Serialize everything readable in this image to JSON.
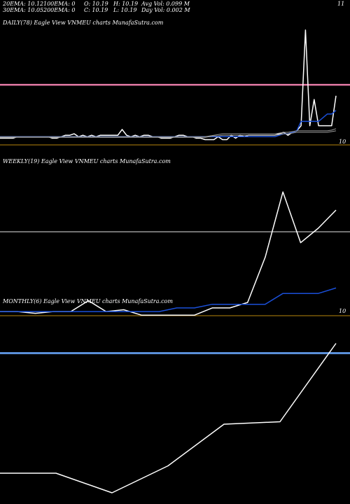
{
  "header": {
    "row1": [
      "20EMA: 10.12",
      "100EMA: 0",
      "O: 10.19",
      "H: 10.19",
      "Avg Vol: 0.099  M",
      "11"
    ],
    "row2": [
      "30EMA: 10.05",
      "200EMA: 0",
      "C: 10.19",
      "L: 10.19",
      "Day Vol: 0.002  M"
    ]
  },
  "colors": {
    "background": "#000000",
    "price_line": "#ffffff",
    "ema_blue": "#1a4fd8",
    "ema_grey": "#9a9a9a",
    "pink_line": "#e57aa6",
    "gold_divider": "#b8860b",
    "steel_line": "#5a8fd8"
  },
  "chart_data": [
    {
      "type": "line",
      "title": "DAILY(78) Eagle   View  VNMEU charts MunafaSutra.com",
      "price_tag": "10",
      "series": [
        {
          "color": "#ffffff",
          "values": [
            10.02,
            10.02,
            10.02,
            10.02,
            10.04,
            10.04,
            10.04,
            10.04,
            10.04,
            10.04,
            10.04,
            10.04,
            10.02,
            10.02,
            10.04,
            10.06,
            10.06,
            10.08,
            10.04,
            10.06,
            10.04,
            10.06,
            10.04,
            10.06,
            10.06,
            10.06,
            10.06,
            10.06,
            10.14,
            10.06,
            10.04,
            10.06,
            10.04,
            10.06,
            10.06,
            10.04,
            10.04,
            10.02,
            10.02,
            10.02,
            10.04,
            10.06,
            10.06,
            10.04,
            10.04,
            10.02,
            10.02,
            10.0,
            10.0,
            10.0,
            10.04,
            10.0,
            10.0,
            10.06,
            10.02,
            10.06,
            10.04,
            10.06,
            10.06,
            10.06,
            10.06,
            10.06,
            10.06,
            10.06,
            10.08,
            10.1,
            10.06,
            10.1,
            10.12,
            10.19,
            11.5,
            10.19,
            10.55,
            10.19,
            10.19,
            10.19,
            10.19,
            10.6
          ]
        },
        {
          "color": "#1a4fd8",
          "values": [
            10.04,
            10.04,
            10.04,
            10.04,
            10.04,
            10.04,
            10.04,
            10.04,
            10.04,
            10.04,
            10.04,
            10.04,
            10.04,
            10.04,
            10.04,
            10.04,
            10.04,
            10.04,
            10.04,
            10.04,
            10.04,
            10.04,
            10.04,
            10.04,
            10.04,
            10.04,
            10.04,
            10.04,
            10.04,
            10.04,
            10.04,
            10.04,
            10.04,
            10.04,
            10.04,
            10.04,
            10.04,
            10.04,
            10.04,
            10.04,
            10.04,
            10.04,
            10.04,
            10.04,
            10.04,
            10.04,
            10.04,
            10.04,
            10.04,
            10.04,
            10.04,
            10.04,
            10.04,
            10.04,
            10.04,
            10.04,
            10.04,
            10.04,
            10.04,
            10.04,
            10.04,
            10.04,
            10.04,
            10.04,
            10.06,
            10.08,
            10.08,
            10.1,
            10.12,
            10.25,
            10.25,
            10.25,
            10.25,
            10.25,
            10.3,
            10.35,
            10.35,
            10.4
          ]
        },
        {
          "color": "#9a9a9a",
          "values": [
            10.04,
            10.04,
            10.04,
            10.04,
            10.04,
            10.04,
            10.04,
            10.04,
            10.04,
            10.04,
            10.04,
            10.04,
            10.04,
            10.04,
            10.04,
            10.04,
            10.04,
            10.04,
            10.04,
            10.04,
            10.04,
            10.04,
            10.04,
            10.04,
            10.04,
            10.04,
            10.04,
            10.04,
            10.04,
            10.04,
            10.04,
            10.04,
            10.04,
            10.04,
            10.04,
            10.04,
            10.04,
            10.04,
            10.04,
            10.04,
            10.04,
            10.04,
            10.04,
            10.04,
            10.04,
            10.04,
            10.04,
            10.04,
            10.05,
            10.06,
            10.07,
            10.08,
            10.08,
            10.08,
            10.08,
            10.08,
            10.08,
            10.08,
            10.08,
            10.08,
            10.08,
            10.08,
            10.08,
            10.08,
            10.09,
            10.1,
            10.1,
            10.11,
            10.12,
            10.12,
            10.12,
            10.12,
            10.12,
            10.12,
            10.12,
            10.12,
            10.13,
            10.15
          ]
        },
        {
          "color": "#9a9a9a",
          "values": [
            10.03,
            10.03,
            10.03,
            10.03,
            10.03,
            10.03,
            10.03,
            10.03,
            10.03,
            10.03,
            10.03,
            10.03,
            10.03,
            10.03,
            10.03,
            10.03,
            10.03,
            10.03,
            10.03,
            10.03,
            10.03,
            10.03,
            10.03,
            10.03,
            10.03,
            10.03,
            10.03,
            10.03,
            10.03,
            10.03,
            10.03,
            10.03,
            10.03,
            10.03,
            10.03,
            10.03,
            10.03,
            10.03,
            10.03,
            10.03,
            10.03,
            10.03,
            10.03,
            10.03,
            10.03,
            10.03,
            10.03,
            10.03,
            10.04,
            10.05,
            10.05,
            10.06,
            10.06,
            10.06,
            10.06,
            10.06,
            10.06,
            10.06,
            10.06,
            10.06,
            10.06,
            10.06,
            10.06,
            10.06,
            10.07,
            10.08,
            10.08,
            10.09,
            10.1,
            10.1,
            10.1,
            10.1,
            10.1,
            10.1,
            10.1,
            10.1,
            10.11,
            10.12
          ]
        }
      ],
      "hlines": [
        {
          "value": 10.75,
          "color": "#e57aa6"
        }
      ],
      "ylim": [
        9.88,
        11.7
      ],
      "grid": false
    },
    {
      "type": "line",
      "title": "WEEKLY(19) Eagle   View  VNMEU charts MunafaSutra.com",
      "price_tag": "10",
      "series": [
        {
          "color": "#ffffff",
          "values": [
            10.0,
            10.0,
            9.98,
            10.0,
            10.0,
            10.12,
            10.0,
            10.02,
            9.96,
            9.96,
            9.96,
            9.96,
            10.04,
            10.04,
            10.1,
            10.6,
            11.32,
            10.76,
            10.92,
            11.12
          ]
        },
        {
          "color": "#1a4fd8",
          "values": [
            10.0,
            10.0,
            10.0,
            10.0,
            10.0,
            10.0,
            10.0,
            10.0,
            10.0,
            10.0,
            10.04,
            10.04,
            10.08,
            10.08,
            10.08,
            10.08,
            10.2,
            10.2,
            10.2,
            10.26
          ]
        }
      ],
      "hlines": [
        {
          "value": 10.88,
          "color": "#9a9a9a"
        }
      ],
      "ylim": [
        9.9,
        11.6
      ],
      "grid": false
    },
    {
      "type": "line",
      "title": "MONTHLY(6) Eagle   View  VNMEU charts MunafaSutra.com",
      "price_tag": "",
      "series": [
        {
          "color": "#ffffff",
          "values": [
            9.92,
            9.92,
            9.84,
            9.95,
            10.12,
            10.13,
            10.45
          ]
        }
      ],
      "hlines": [
        {
          "value": 10.41,
          "color": "#5a8fd8"
        }
      ],
      "ylim": [
        9.8,
        10.6
      ],
      "grid": false
    }
  ]
}
